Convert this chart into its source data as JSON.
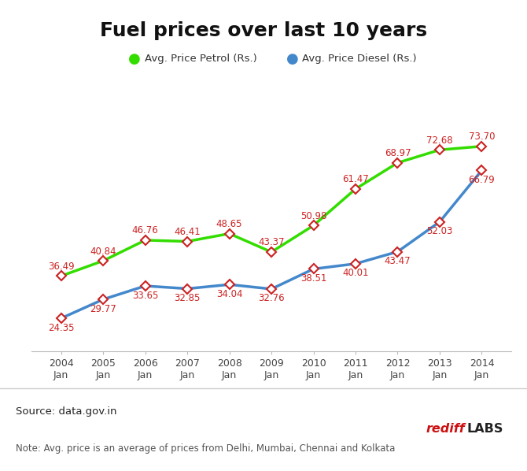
{
  "title": "Fuel prices over last 10 years",
  "years": [
    2004,
    2005,
    2006,
    2007,
    2008,
    2009,
    2010,
    2011,
    2012,
    2013,
    2014
  ],
  "x_labels": [
    "2004\nJan",
    "2005\nJan",
    "2006\nJan",
    "2007\nJan",
    "2008\nJan",
    "2009\nJan",
    "2010\nJan",
    "2011\nJan",
    "2012\nJan",
    "2013\nJan",
    "2014\nJan"
  ],
  "petrol": [
    36.49,
    40.84,
    46.76,
    46.41,
    48.65,
    43.37,
    50.98,
    61.47,
    68.97,
    72.68,
    73.7
  ],
  "diesel": [
    24.35,
    29.77,
    33.65,
    32.85,
    34.04,
    32.76,
    38.51,
    40.01,
    43.47,
    52.03,
    66.79
  ],
  "petrol_color": "#33dd00",
  "diesel_color": "#4488cc",
  "marker_color": "#cc2222",
  "legend_petrol": "Avg. Price Petrol (Rs.)",
  "legend_diesel": "Avg. Price Diesel (Rs.)",
  "source_text": "Source: data.gov.in",
  "note_text": "Note: Avg. price is an average of prices from Delhi, Mumbai, Chennai and Kolkata",
  "rediff_text1": "rediff",
  "rediff_text2": "LABS",
  "ylim_min": 15,
  "ylim_max": 90,
  "title_fontsize": 18,
  "annot_fontsize": 8.5,
  "tick_fontsize": 9,
  "bg_color": "#ffffff",
  "footer_bg": "#f0f0f0",
  "separator_color": "#cccccc",
  "spine_color": "#bbbbbb"
}
